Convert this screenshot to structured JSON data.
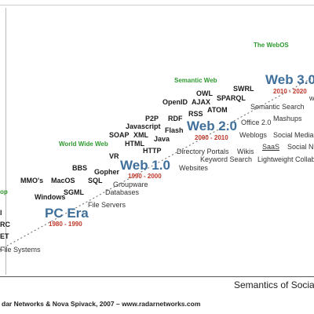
{
  "layers": {
    "webos": "The WebOS",
    "semantic_web": "Semantic Web",
    "world_wide_web": "World Wide Web",
    "desktop_partial": "op"
  },
  "eras": {
    "web3": {
      "label": "Web 3.0",
      "years": "2010 - 2020"
    },
    "web2": {
      "label": "Web 2.0",
      "years": "2000 - 2010"
    },
    "web1": {
      "label": "Web 1.0",
      "years": "1990 - 2000"
    },
    "pc": {
      "label": "PC Era",
      "years": "1980 - 1990"
    }
  },
  "techs": {
    "swrl": "SWRL",
    "owl": "OWL",
    "sparql": "SPARQL",
    "ajax": "AJAX",
    "openid": "OpenID",
    "atom": "ATOM",
    "rss": "RSS",
    "p2p": "P2P",
    "rdf": "RDF",
    "javascript": "Javascript",
    "flash": "Flash",
    "soap": "SOAP",
    "xml": "XML",
    "java": "Java",
    "html": "HTML",
    "http": "HTTP",
    "vr": "VR",
    "bbs": "BBS",
    "gopher": "Gopher",
    "mmos": "MMO's",
    "macos": "MacOS",
    "sql": "SQL",
    "sgml": "SGML",
    "windows": "Windows",
    "l_partial": "l",
    "rc_partial": "RC",
    "et_partial": "ET"
  },
  "descs": {
    "semantic_search": "Semantic Search",
    "mashups": "Mashups",
    "office2": "Office 2.0",
    "weblogs": "Weblogs",
    "social_media": "Social Media",
    "saas": "SaaS",
    "social_net": "Social N",
    "directory_portals": "Directory Portals",
    "wikis": "Wikis",
    "keyword_search": "Keyword Search",
    "lightweight_collab": "Lightweight Collabo",
    "websites": "Websites",
    "groupware": "Groupware",
    "databases": "Databases",
    "file_servers": "File Servers",
    "file_systems": "File Systems",
    "partial_right": "w"
  },
  "footer": {
    "title": "Semantics of Social",
    "credit": "dar Networks & Nova Spivack, 2007 – www.radarnetworks.com"
  }
}
